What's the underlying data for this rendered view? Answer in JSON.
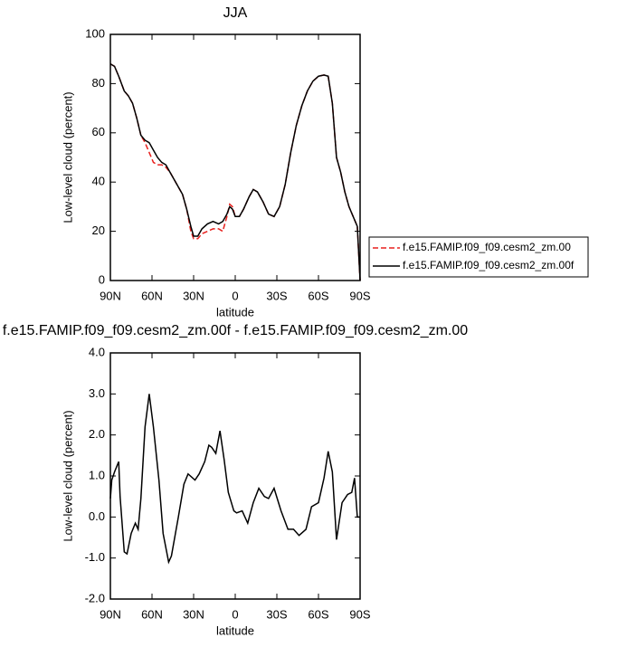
{
  "chart_data": [
    {
      "type": "line",
      "title": "JJA",
      "xlabel": "latitude",
      "ylabel": "Low-level cloud (percent)",
      "x": [
        90,
        87,
        84,
        80,
        77,
        74,
        71,
        68,
        65,
        62,
        59,
        56,
        53,
        50,
        47,
        44,
        41,
        38,
        35,
        32,
        30,
        27,
        24,
        20,
        16,
        12,
        9,
        6,
        4,
        2,
        0,
        -3,
        -6,
        -10,
        -13,
        -16,
        -20,
        -24,
        -28,
        -32,
        -36,
        -40,
        -44,
        -48,
        -52,
        -56,
        -60,
        -64,
        -67,
        -70,
        -73,
        -76,
        -79,
        -82,
        -85,
        -88,
        -90
      ],
      "series": [
        {
          "name": "f.e15.FAMIP.f09_f09.cesm2_zm.00",
          "color": "#e8211e",
          "dashed": true,
          "values": [
            88,
            87,
            83,
            77,
            75,
            72,
            66,
            59,
            56,
            52,
            48,
            47,
            47,
            46,
            44,
            41,
            38,
            35,
            29,
            20,
            17,
            17,
            19,
            20,
            21,
            21,
            20,
            26,
            31,
            30,
            26,
            26,
            29,
            34,
            37,
            36,
            32,
            27,
            26,
            30,
            39,
            52,
            63,
            71,
            77,
            81,
            83,
            83.5,
            83,
            72,
            50,
            44,
            36,
            30,
            26,
            22,
            0
          ]
        },
        {
          "name": "f.e15.FAMIP.f09_f09.cesm2_zm.00f",
          "color": "#000000",
          "dashed": false,
          "values": [
            88,
            87,
            83,
            77,
            75,
            72,
            66,
            59,
            57,
            56,
            53,
            50,
            48,
            47,
            44,
            41,
            38,
            35,
            29,
            22,
            18,
            18,
            21,
            23,
            24,
            23,
            24,
            27,
            30,
            29,
            26,
            26,
            29,
            34,
            37,
            36,
            32,
            27,
            26,
            30,
            39,
            52,
            63,
            71,
            77,
            81,
            83,
            83.5,
            83,
            72,
            50,
            44,
            36,
            30,
            26,
            22,
            0
          ]
        }
      ],
      "xlim": [
        90,
        -90
      ],
      "xticks": [
        {
          "value": 90,
          "label": "90N"
        },
        {
          "value": 60,
          "label": "60N"
        },
        {
          "value": 30,
          "label": "30N"
        },
        0,
        {
          "value": -30,
          "label": "30S"
        },
        {
          "value": -60,
          "label": "60S"
        },
        {
          "value": -90,
          "label": "90S"
        }
      ],
      "ylim": [
        0,
        100
      ],
      "yticks": [
        0,
        20,
        40,
        60,
        80,
        100
      ],
      "legend": "right"
    },
    {
      "type": "line",
      "title": "f.e15.FAMIP.f09_f09.cesm2_zm.00f - f.e15.FAMIP.f09_f09.cesm2_zm.00",
      "xlabel": "latitude",
      "ylabel": "Low-level cloud (percent)",
      "x": [
        90,
        89,
        87,
        84,
        83,
        80,
        78,
        75,
        72,
        70,
        68,
        65,
        62,
        59,
        55,
        52,
        48,
        46,
        41,
        37,
        34,
        29,
        26,
        22,
        19,
        17,
        14,
        11,
        8,
        5,
        1,
        -1,
        -5,
        -9,
        -13,
        -17,
        -21,
        -24,
        -28,
        -33,
        -38,
        -42,
        -46,
        -51,
        -55,
        -60,
        -64,
        -67,
        -70,
        -73,
        -77,
        -81,
        -84,
        -86,
        -88,
        -90
      ],
      "series": [
        {
          "color": "#000000",
          "dashed": false,
          "values": [
            0.45,
            0.9,
            1.1,
            1.35,
            0.5,
            -0.85,
            -0.9,
            -0.4,
            -0.15,
            -0.3,
            0.45,
            2.2,
            3.0,
            2.2,
            0.9,
            -0.4,
            -1.1,
            -0.95,
            0.0,
            0.8,
            1.05,
            0.9,
            1.05,
            1.35,
            1.75,
            1.7,
            1.55,
            2.1,
            1.4,
            0.6,
            0.15,
            0.1,
            0.15,
            -0.15,
            0.35,
            0.7,
            0.5,
            0.45,
            0.7,
            0.15,
            -0.3,
            -0.3,
            -0.45,
            -0.3,
            0.25,
            0.35,
            0.95,
            1.6,
            1.1,
            -0.55,
            0.35,
            0.55,
            0.6,
            0.95,
            0.0,
            0.0
          ]
        }
      ],
      "xlim": [
        90,
        -90
      ],
      "xticks": [
        {
          "value": 90,
          "label": "90N"
        },
        {
          "value": 60,
          "label": "60N"
        },
        {
          "value": 30,
          "label": "30N"
        },
        0,
        {
          "value": -30,
          "label": "30S"
        },
        {
          "value": -60,
          "label": "60S"
        },
        {
          "value": -90,
          "label": "90S"
        }
      ],
      "ylim": [
        -2,
        4
      ],
      "yticks": [
        {
          "value": -2,
          "label": "-2.0"
        },
        {
          "value": -1,
          "label": "-1.0"
        },
        {
          "value": 0,
          "label": "0.0"
        },
        {
          "value": 1,
          "label": "1.0"
        },
        {
          "value": 2,
          "label": "2.0"
        },
        {
          "value": 3,
          "label": "3.0"
        },
        {
          "value": 4,
          "label": "4.0"
        }
      ]
    }
  ]
}
